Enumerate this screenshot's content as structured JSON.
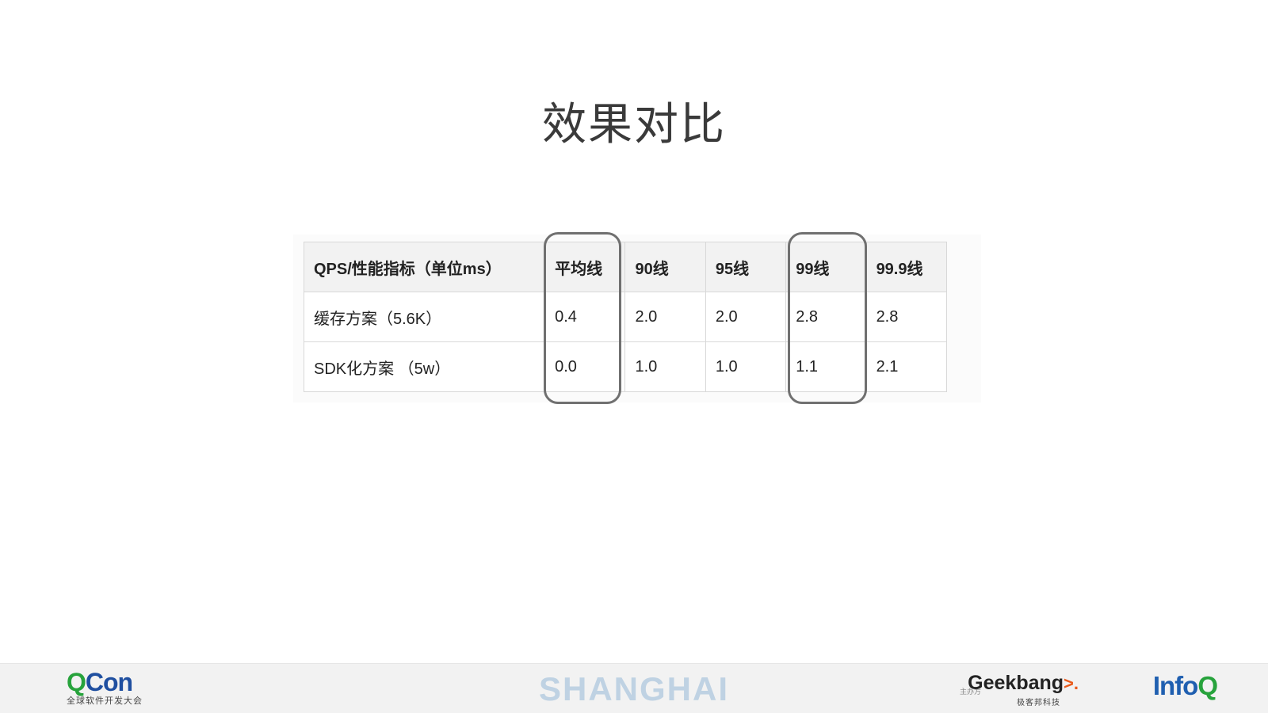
{
  "slide": {
    "title": "效果对比"
  },
  "table": {
    "headers": [
      "QPS/性能指标（单位ms）",
      "平均线",
      "90线",
      "95线",
      "99线",
      "99.9线"
    ],
    "rows": [
      [
        "缓存方案（5.6K）",
        "0.4",
        "2.0",
        "2.0",
        "2.8",
        "2.8"
      ],
      [
        "SDK化方案 （5w）",
        "0.0",
        "1.0",
        "1.0",
        "1.1",
        "2.1"
      ]
    ]
  },
  "footer": {
    "brand": {
      "q": "Q",
      "rest": "Con",
      "subtitle": "全球软件开发大会"
    },
    "city": "SHANGHAI",
    "sponsor_label": "主办方",
    "geekbang": {
      "text": "Geekbang",
      "arrow": ">.",
      "subtitle": "极客邦科技"
    },
    "infoq": {
      "text": "Info",
      "q": "Q"
    }
  },
  "colors": {
    "qcon_green": "#27a33c",
    "qcon_blue": "#1f4fa0",
    "city_text": "#bfd2e3",
    "geekbang_orange": "#e95b1c",
    "highlight_border": "#707070"
  }
}
